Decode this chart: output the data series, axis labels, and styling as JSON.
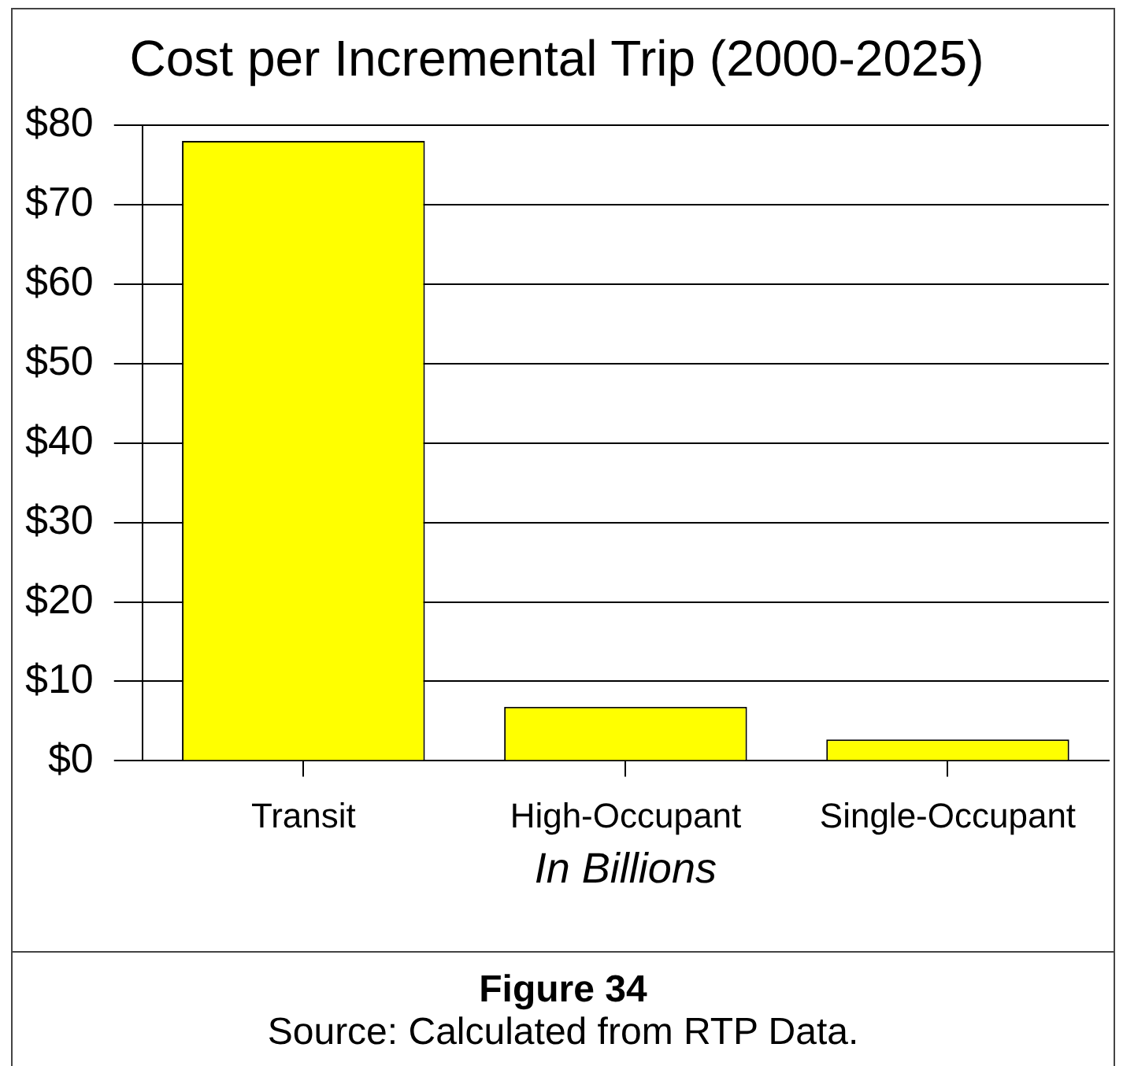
{
  "chart_data": {
    "type": "bar",
    "title": "Cost per Incremental Trip (2000-2025)",
    "xlabel": "In Billions",
    "categories": [
      "Transit",
      "High-Occupant",
      "Single-Occupant"
    ],
    "values": [
      78,
      6.8,
      2.7
    ],
    "color": "#ffff00",
    "ylim": [
      0,
      80
    ],
    "yticks": [
      {
        "value": 0,
        "label": "$0"
      },
      {
        "value": 10,
        "label": "$10"
      },
      {
        "value": 20,
        "label": "$20"
      },
      {
        "value": 30,
        "label": "$30"
      },
      {
        "value": 40,
        "label": "$40"
      },
      {
        "value": 50,
        "label": "$50"
      },
      {
        "value": 60,
        "label": "$60"
      },
      {
        "value": 70,
        "label": "$70"
      },
      {
        "value": 80,
        "label": "$80"
      }
    ],
    "grid": "y",
    "annotations": [
      "Figure 34",
      "Source: Calculated from RTP Data."
    ]
  }
}
